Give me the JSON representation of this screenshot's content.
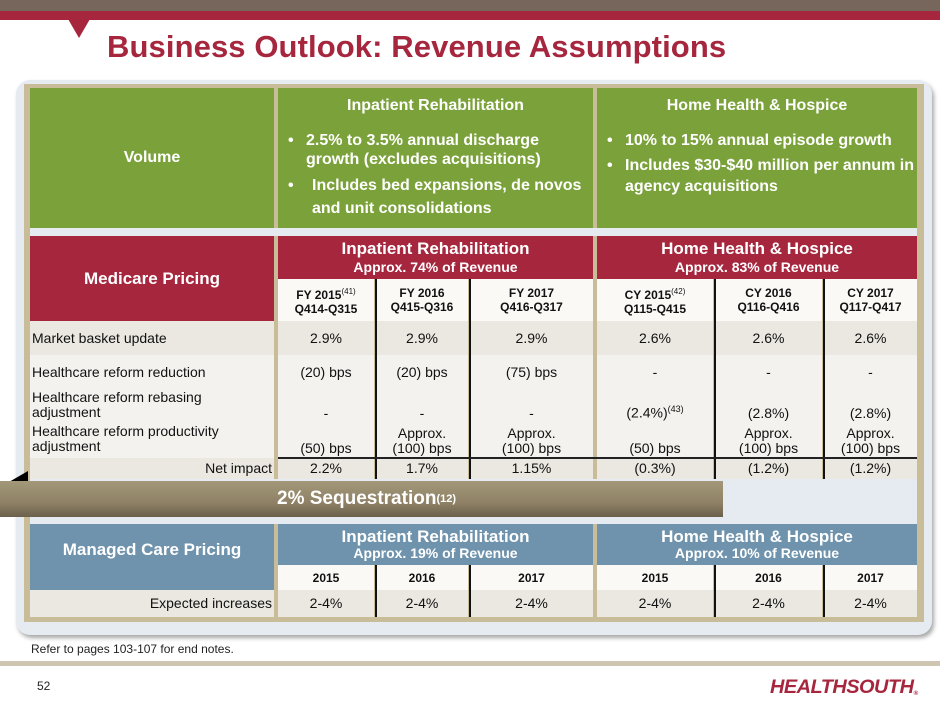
{
  "header": {
    "title": "Business Outlook: Revenue Assumptions"
  },
  "volume": {
    "label": "Volume",
    "inpatient": {
      "title": "Inpatient Rehabilitation",
      "bullets": [
        "2.5% to 3.5% annual discharge growth (excludes acquisitions)",
        "Includes bed expansions, de novos and unit consolidations"
      ]
    },
    "home_health": {
      "title": "Home Health & Hospice",
      "bullets": [
        "10% to 15% annual episode growth",
        "Includes $30-$40 million per annum in agency acquisitions"
      ]
    }
  },
  "medicare": {
    "label": "Medicare Pricing",
    "inpatient": {
      "title": "Inpatient Rehabilitation",
      "subtitle": "Approx. 74% of Revenue"
    },
    "home_health": {
      "title": "Home Health & Hospice",
      "subtitle": "Approx. 83% of Revenue"
    },
    "columns": [
      {
        "year": "FY 2015",
        "note": "(41)",
        "period": "Q414-Q315"
      },
      {
        "year": "FY 2016",
        "note": "",
        "period": "Q415-Q316"
      },
      {
        "year": "FY 2017",
        "note": "",
        "period": "Q416-Q317"
      },
      {
        "year": "CY 2015",
        "note": "(42)",
        "period": "Q115-Q415"
      },
      {
        "year": "CY 2016",
        "note": "",
        "period": "Q116-Q416"
      },
      {
        "year": "CY 2017",
        "note": "",
        "period": "Q117-Q417"
      }
    ],
    "rows": [
      {
        "label": "Market basket update",
        "values": [
          "2.9%",
          "2.9%",
          "2.9%",
          "2.6%",
          "2.6%",
          "2.6%"
        ]
      },
      {
        "label": "Healthcare reform reduction",
        "values": [
          "(20) bps",
          "(20) bps",
          "(75) bps",
          "-",
          "-",
          "-"
        ]
      },
      {
        "label": "Healthcare reform rebasing adjustment",
        "values": [
          "-",
          "-",
          "-",
          "(2.4%)",
          "(2.8%)",
          "(2.8%)"
        ],
        "notes": [
          "",
          "",
          "",
          "(43)",
          "",
          ""
        ]
      },
      {
        "label": "Healthcare reform productivity adjustment",
        "values": [
          "(50) bps",
          "Approx. (100) bps",
          "Approx. (100) bps",
          "(50) bps",
          "Approx. (100) bps",
          "Approx. (100) bps"
        ]
      },
      {
        "label": "Net impact",
        "values": [
          "2.2%",
          "1.7%",
          "1.15%",
          "(0.3%)",
          "(1.2%)",
          "(1.2%)"
        ]
      }
    ]
  },
  "sequestration": {
    "label": "2% Sequestration",
    "note": "(12)"
  },
  "managed_care": {
    "label": "Managed Care Pricing",
    "inpatient": {
      "title": "Inpatient Rehabilitation",
      "subtitle": "Approx. 19% of Revenue"
    },
    "home_health": {
      "title": "Home Health & Hospice",
      "subtitle": "Approx. 10% of Revenue"
    },
    "columns": [
      "2015",
      "2016",
      "2017",
      "2015",
      "2016",
      "2017"
    ],
    "row": {
      "label": "Expected increases",
      "values": [
        "2-4%",
        "2-4%",
        "2-4%",
        "2-4%",
        "2-4%",
        "2-4%"
      ]
    }
  },
  "footer": {
    "note": "Refer to pages 103-107 for end notes.",
    "page_number": "52",
    "logo": "HEALTHSOUTH",
    "logo_mark": "®"
  },
  "colors": {
    "brand_red": "#a6263e",
    "volume_green": "#7ba23a",
    "managed_blue": "#6f93ac",
    "sequestration_tan": "#8e8165"
  }
}
